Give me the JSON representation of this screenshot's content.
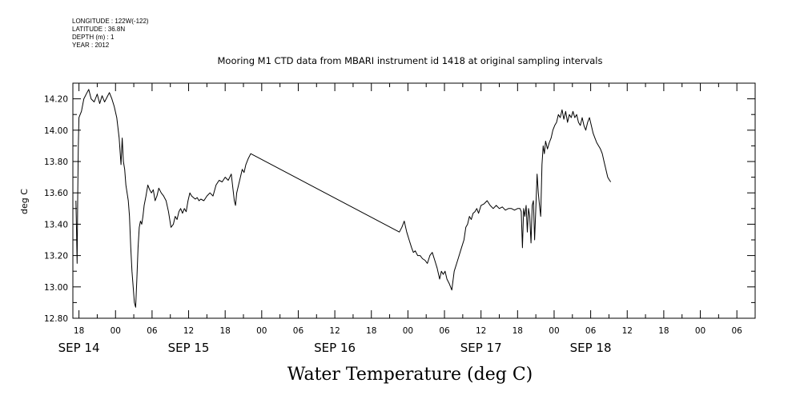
{
  "meta": {
    "lines": [
      "LONGITUDE : 122W(-122)",
      "LATITUDE : 36.8N",
      "DEPTH (m) : 1",
      "YEAR : 2012"
    ]
  },
  "chart_data": {
    "type": "line",
    "title": "Mooring M1 CTD data from MBARI instrument id 1418 at original sampling intervals",
    "xlabel": "Water Temperature (deg C)",
    "ylabel": "deg C",
    "xlim": [
      -7,
      105
    ],
    "ylim": [
      12.8,
      14.3
    ],
    "yticks": [
      12.8,
      13.0,
      13.2,
      13.4,
      13.6,
      13.8,
      14.0,
      14.2
    ],
    "ytick_labels": [
      "12.80",
      "13.00",
      "13.20",
      "13.40",
      "13.60",
      "13.80",
      "14.00",
      "14.20"
    ],
    "xticks": [
      -6,
      0,
      6,
      12,
      18,
      24,
      30,
      36,
      42,
      48,
      54,
      60,
      66,
      72,
      78,
      84,
      90,
      96,
      102
    ],
    "xtick_labels": [
      "18",
      "00",
      "06",
      "12",
      "18",
      "00",
      "06",
      "12",
      "18",
      "00",
      "06",
      "12",
      "18",
      "00",
      "06",
      "12",
      "18",
      "00",
      "06"
    ],
    "date_labels": [
      {
        "hour": -6,
        "label": "SEP 14"
      },
      {
        "hour": 12,
        "label": "SEP 15"
      },
      {
        "hour": 36,
        "label": "SEP 16"
      },
      {
        "hour": 60,
        "label": "SEP 17"
      },
      {
        "hour": 78,
        "label": "SEP 18"
      }
    ],
    "x_units": "hours since SEP 15 00:00",
    "grid": false,
    "series": [
      {
        "name": "Water Temperature",
        "x": [
          -6.5,
          -6.4,
          -6.3,
          -6.2,
          -6.1,
          -6.0,
          -5.8,
          -5.6,
          -5.2,
          -4.8,
          -4.4,
          -4.0,
          -3.5,
          -3.0,
          -2.6,
          -2.2,
          -1.8,
          -1.4,
          -1.0,
          -0.6,
          -0.2,
          0.2,
          0.6,
          0.9,
          1.1,
          1.3,
          1.5,
          1.7,
          1.9,
          2.1,
          2.3,
          2.5,
          2.7,
          2.9,
          3.1,
          3.3,
          3.5,
          3.7,
          3.9,
          4.1,
          4.3,
          4.5,
          4.7,
          5.0,
          5.3,
          5.6,
          5.9,
          6.2,
          6.5,
          6.8,
          7.1,
          7.5,
          7.9,
          8.3,
          8.7,
          9.1,
          9.5,
          9.8,
          10.1,
          10.4,
          10.7,
          11.0,
          11.3,
          11.6,
          11.9,
          12.2,
          12.5,
          12.8,
          13.1,
          13.4,
          13.7,
          14.0,
          14.5,
          15.0,
          15.5,
          16.0,
          16.5,
          17.0,
          17.5,
          18.0,
          18.5,
          19.0,
          19.5,
          19.7,
          19.9,
          20.2,
          20.5,
          20.8,
          21.1,
          21.4,
          21.8,
          22.2,
          46.6,
          47.0,
          47.4,
          47.8,
          48.2,
          48.6,
          48.9,
          49.2,
          49.6,
          50.0,
          50.4,
          50.8,
          51.2,
          51.6,
          52.0,
          52.4,
          52.8,
          53.2,
          53.5,
          53.8,
          54.1,
          54.4,
          54.8,
          55.2,
          55.6,
          56.0,
          56.4,
          56.8,
          57.2,
          57.5,
          57.8,
          58.1,
          58.4,
          58.7,
          59.0,
          59.3,
          59.6,
          60.0,
          60.5,
          61.0,
          61.5,
          62.0,
          62.5,
          63.0,
          63.5,
          64.0,
          64.5,
          65.0,
          65.5,
          66.0,
          66.4,
          66.6,
          66.8,
          67.0,
          67.2,
          67.4,
          67.6,
          67.8,
          68.0,
          68.2,
          68.4,
          68.6,
          68.8,
          69.0,
          69.2,
          69.4,
          69.6,
          69.8,
          70.0,
          70.2,
          70.4,
          70.6,
          70.9,
          71.2,
          71.5,
          71.8,
          72.1,
          72.4,
          72.7,
          73.0,
          73.3,
          73.6,
          73.9,
          74.2,
          74.5,
          74.8,
          75.1,
          75.4,
          75.7,
          76.0,
          76.3,
          76.6,
          76.9,
          77.2,
          77.5,
          77.8,
          78.1,
          78.4,
          78.7,
          79.0,
          79.3,
          79.6,
          79.9,
          80.2,
          80.5,
          80.8,
          81.1,
          81.3
        ],
        "y": [
          13.55,
          13.35,
          13.15,
          13.6,
          13.9,
          14.08,
          14.1,
          14.12,
          14.2,
          14.23,
          14.26,
          14.2,
          14.18,
          14.23,
          14.17,
          14.22,
          14.18,
          14.21,
          14.24,
          14.2,
          14.15,
          14.08,
          13.95,
          13.78,
          13.95,
          13.8,
          13.75,
          13.65,
          13.6,
          13.55,
          13.45,
          13.25,
          13.1,
          13.0,
          12.9,
          12.87,
          13.05,
          13.25,
          13.38,
          13.42,
          13.4,
          13.45,
          13.52,
          13.58,
          13.65,
          13.62,
          13.6,
          13.62,
          13.55,
          13.58,
          13.63,
          13.6,
          13.58,
          13.55,
          13.48,
          13.38,
          13.4,
          13.45,
          13.43,
          13.48,
          13.5,
          13.47,
          13.5,
          13.48,
          13.55,
          13.6,
          13.58,
          13.57,
          13.56,
          13.57,
          13.55,
          13.56,
          13.55,
          13.58,
          13.6,
          13.58,
          13.65,
          13.68,
          13.67,
          13.7,
          13.68,
          13.72,
          13.55,
          13.52,
          13.6,
          13.65,
          13.7,
          13.75,
          13.73,
          13.78,
          13.82,
          13.85,
          13.35,
          13.38,
          13.42,
          13.35,
          13.3,
          13.25,
          13.22,
          13.23,
          13.2,
          13.2,
          13.18,
          13.17,
          13.15,
          13.2,
          13.22,
          13.17,
          13.12,
          13.05,
          13.1,
          13.08,
          13.1,
          13.05,
          13.02,
          12.98,
          13.1,
          13.15,
          13.2,
          13.25,
          13.3,
          13.38,
          13.4,
          13.45,
          13.43,
          13.47,
          13.48,
          13.5,
          13.47,
          13.52,
          13.53,
          13.55,
          13.52,
          13.5,
          13.52,
          13.5,
          13.51,
          13.49,
          13.5,
          13.5,
          13.49,
          13.5,
          13.5,
          13.48,
          13.25,
          13.5,
          13.45,
          13.52,
          13.35,
          13.5,
          13.45,
          13.28,
          13.52,
          13.55,
          13.3,
          13.5,
          13.72,
          13.6,
          13.52,
          13.45,
          13.78,
          13.9,
          13.85,
          13.93,
          13.88,
          13.92,
          13.95,
          14.0,
          14.03,
          14.05,
          14.1,
          14.08,
          14.13,
          14.07,
          14.12,
          14.05,
          14.1,
          14.08,
          14.12,
          14.08,
          14.1,
          14.05,
          14.03,
          14.08,
          14.03,
          14.0,
          14.05,
          14.08,
          14.03,
          13.98,
          13.95,
          13.92,
          13.9,
          13.88,
          13.85,
          13.8,
          13.75,
          13.7,
          13.68,
          13.67
        ]
      }
    ]
  }
}
